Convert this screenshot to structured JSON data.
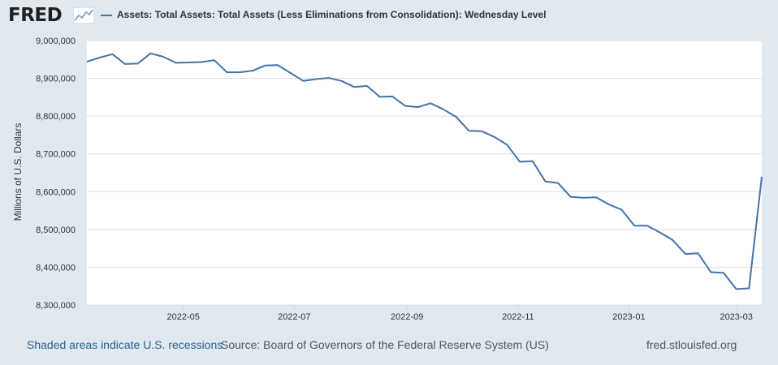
{
  "header": {
    "logo_text": "FRED",
    "logo_icon": "chart-line-icon",
    "series_title": "Assets: Total Assets: Total Assets (Less Eliminations from Consolidation): Wednesday Level"
  },
  "colors": {
    "background": "#e1e9f0",
    "plot_background": "#ffffff",
    "series": "#4572a7",
    "grid": "#dddddd"
  },
  "footer": {
    "recessions_note": "Shaded areas indicate U.S. recessions",
    "source": "Source: Board of Governors of the Federal Reserve System (US)",
    "site": "fred.stlouisfed.org"
  },
  "chart_data": {
    "type": "line",
    "title": "Assets: Total Assets: Total Assets (Less Eliminations from Consolidation): Wednesday Level",
    "xlabel": "",
    "ylabel": "Millions of U.S. Dollars",
    "ylim": [
      8300000,
      9000000
    ],
    "yticks": [
      {
        "value": 9000000,
        "label": "9,000,000"
      },
      {
        "value": 8900000,
        "label": "8,900,000"
      },
      {
        "value": 8800000,
        "label": "8,800,000"
      },
      {
        "value": 8700000,
        "label": "8,700,000"
      },
      {
        "value": 8600000,
        "label": "8,600,000"
      },
      {
        "value": 8500000,
        "label": "8,500,000"
      },
      {
        "value": 8400000,
        "label": "8,400,000"
      },
      {
        "value": 8300000,
        "label": "8,300,000"
      }
    ],
    "xlim": [
      "2022-03-09",
      "2023-03-15"
    ],
    "xticks": [
      {
        "date": "2022-05-01",
        "label": "2022-05"
      },
      {
        "date": "2022-07-01",
        "label": "2022-07"
      },
      {
        "date": "2022-09-01",
        "label": "2022-09"
      },
      {
        "date": "2022-11-01",
        "label": "2022-11"
      },
      {
        "date": "2023-01-01",
        "label": "2023-01"
      },
      {
        "date": "2023-03-01",
        "label": "2023-03"
      }
    ],
    "grid": true,
    "series": [
      {
        "x": [
          "2022-03-09",
          "2022-03-16",
          "2022-03-23",
          "2022-03-30",
          "2022-04-06",
          "2022-04-13",
          "2022-04-20",
          "2022-04-27",
          "2022-05-04",
          "2022-05-11",
          "2022-05-18",
          "2022-05-25",
          "2022-06-01",
          "2022-06-08",
          "2022-06-15",
          "2022-06-22",
          "2022-06-29",
          "2022-07-06",
          "2022-07-13",
          "2022-07-20",
          "2022-07-27",
          "2022-08-03",
          "2022-08-10",
          "2022-08-17",
          "2022-08-24",
          "2022-08-31",
          "2022-09-07",
          "2022-09-14",
          "2022-09-21",
          "2022-09-28",
          "2022-10-05",
          "2022-10-12",
          "2022-10-19",
          "2022-10-26",
          "2022-11-02",
          "2022-11-09",
          "2022-11-16",
          "2022-11-23",
          "2022-11-30",
          "2022-12-07",
          "2022-12-14",
          "2022-12-21",
          "2022-12-28",
          "2023-01-04",
          "2023-01-11",
          "2023-01-18",
          "2023-01-25",
          "2023-02-01",
          "2023-02-08",
          "2023-02-15",
          "2023-02-22",
          "2023-03-01",
          "2023-03-08",
          "2023-03-15"
        ],
        "values": [
          8944000,
          8955000,
          8964000,
          8938000,
          8939000,
          8966000,
          8957000,
          8941000,
          8942000,
          8943000,
          8948000,
          8916000,
          8916000,
          8920000,
          8934000,
          8935000,
          8914000,
          8893000,
          8898000,
          8901000,
          8893000,
          8877000,
          8880000,
          8851000,
          8852000,
          8827000,
          8824000,
          8834000,
          8818000,
          8798000,
          8761000,
          8760000,
          8745000,
          8724000,
          8679000,
          8681000,
          8627000,
          8623000,
          8586000,
          8584000,
          8585000,
          8566000,
          8552000,
          8510000,
          8510000,
          8492000,
          8472000,
          8435000,
          8437000,
          8387000,
          8385000,
          8342000,
          8344000,
          8639000
        ]
      }
    ]
  }
}
